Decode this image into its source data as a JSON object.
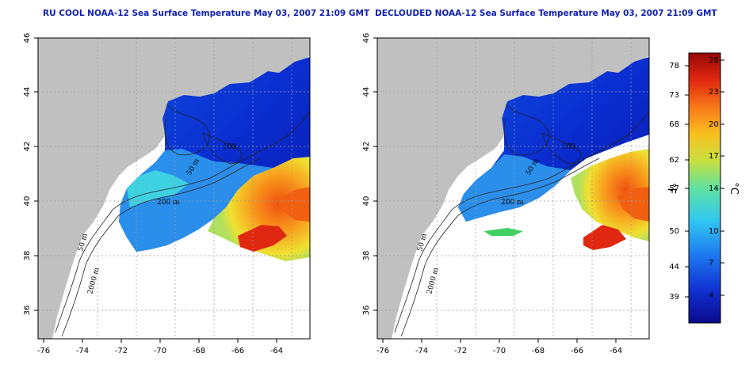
{
  "maps": [
    {
      "title": "RU COOL NOAA-12 Sea Surface Temperature May 03, 2007 21:09 GMT",
      "contours": [
        "100",
        "50 m",
        "200 m",
        "50 m",
        "2000 m"
      ]
    },
    {
      "title": "DECLOUDED NOAA-12 Sea Surface Temperature May 03, 2007 21:09 GMT",
      "contours": [
        "100",
        "50 m",
        "200 m",
        "50 m",
        "2000 m"
      ]
    }
  ],
  "axes": {
    "latitude_ticks": [
      "46",
      "44",
      "42",
      "40",
      "38",
      "36"
    ],
    "longitude_ticks": [
      "-76",
      "-74",
      "-72",
      "-70",
      "-68",
      "-66",
      "-64"
    ]
  },
  "colorbar": {
    "fahrenheit_unit": "°F",
    "celsius_unit": "°C",
    "fahrenheit_ticks": [
      "78",
      "73",
      "68",
      "62",
      "57",
      "50",
      "44",
      "39"
    ],
    "celsius_ticks": [
      "26",
      "23",
      "20",
      "17",
      "14",
      "10",
      "7",
      "4"
    ],
    "colors": [
      "#0a0a8c",
      "#1e78f0",
      "#30c8f0",
      "#c8e040",
      "#f8c020",
      "#e02810",
      "#980808"
    ]
  },
  "colors": {
    "title": "#1020b0",
    "land": "#c0c0c0"
  }
}
